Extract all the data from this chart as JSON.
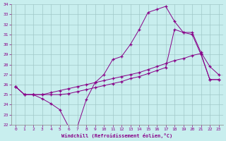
{
  "xlabel": "Windchill (Refroidissement éolien,°C)",
  "xlim": [
    -0.5,
    23.5
  ],
  "ylim": [
    22,
    34
  ],
  "yticks": [
    22,
    23,
    24,
    25,
    26,
    27,
    28,
    29,
    30,
    31,
    32,
    33,
    34
  ],
  "xticks": [
    0,
    1,
    2,
    3,
    4,
    5,
    6,
    7,
    8,
    9,
    10,
    11,
    12,
    13,
    14,
    15,
    16,
    17,
    18,
    19,
    20,
    21,
    22,
    23
  ],
  "background_color": "#c8eeee",
  "grid_color": "#a0c8c8",
  "line_color": "#880088",
  "line1_x": [
    0,
    1,
    2,
    3,
    4,
    5,
    6,
    7,
    8,
    9,
    10,
    11,
    12,
    13,
    14,
    15,
    16,
    17,
    18,
    19,
    20,
    21,
    22,
    23
  ],
  "line1_y": [
    25.8,
    25.0,
    25.0,
    24.6,
    24.1,
    23.5,
    21.8,
    21.8,
    24.5,
    26.2,
    27.0,
    28.5,
    28.8,
    30.0,
    31.5,
    33.2,
    33.5,
    33.8,
    32.3,
    31.2,
    31.2,
    29.2,
    27.8,
    27.0
  ],
  "line2_x": [
    0,
    1,
    2,
    3,
    4,
    5,
    6,
    7,
    8,
    9,
    10,
    11,
    12,
    13,
    14,
    15,
    16,
    17,
    18,
    19,
    20,
    21,
    22,
    23
  ],
  "line2_y": [
    25.8,
    25.0,
    25.0,
    25.0,
    25.0,
    25.0,
    25.1,
    25.3,
    25.5,
    25.7,
    25.9,
    26.1,
    26.3,
    26.6,
    26.8,
    27.1,
    27.4,
    27.7,
    31.5,
    31.2,
    31.0,
    29.0,
    26.5,
    26.5
  ],
  "line3_x": [
    0,
    1,
    2,
    3,
    4,
    5,
    6,
    7,
    8,
    9,
    10,
    11,
    12,
    13,
    14,
    15,
    16,
    17,
    18,
    19,
    20,
    21,
    22,
    23
  ],
  "line3_y": [
    25.8,
    25.0,
    25.0,
    25.0,
    25.2,
    25.4,
    25.6,
    25.8,
    26.0,
    26.2,
    26.4,
    26.6,
    26.8,
    27.0,
    27.2,
    27.5,
    27.8,
    28.1,
    28.4,
    28.6,
    28.9,
    29.1,
    26.5,
    26.5
  ]
}
